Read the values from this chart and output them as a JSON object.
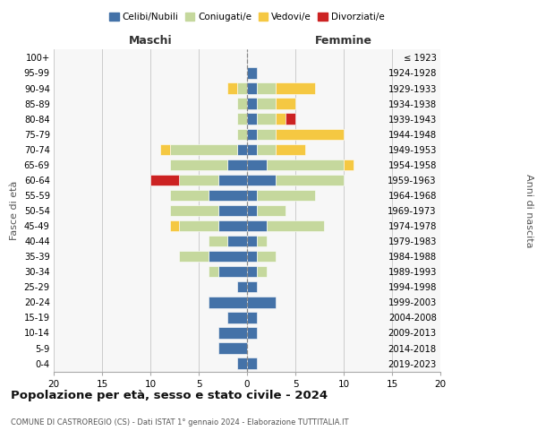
{
  "age_groups": [
    "0-4",
    "5-9",
    "10-14",
    "15-19",
    "20-24",
    "25-29",
    "30-34",
    "35-39",
    "40-44",
    "45-49",
    "50-54",
    "55-59",
    "60-64",
    "65-69",
    "70-74",
    "75-79",
    "80-84",
    "85-89",
    "90-94",
    "95-99",
    "100+"
  ],
  "birth_years": [
    "2019-2023",
    "2014-2018",
    "2009-2013",
    "2004-2008",
    "1999-2003",
    "1994-1998",
    "1989-1993",
    "1984-1988",
    "1979-1983",
    "1974-1978",
    "1969-1973",
    "1964-1968",
    "1959-1963",
    "1954-1958",
    "1949-1953",
    "1944-1948",
    "1939-1943",
    "1934-1938",
    "1929-1933",
    "1924-1928",
    "≤ 1923"
  ],
  "maschi": {
    "celibi": [
      1,
      3,
      3,
      2,
      4,
      1,
      3,
      4,
      2,
      3,
      3,
      4,
      3,
      2,
      1,
      0,
      0,
      0,
      0,
      0,
      0
    ],
    "coniugati": [
      0,
      0,
      0,
      0,
      0,
      0,
      1,
      3,
      2,
      4,
      5,
      4,
      4,
      6,
      7,
      1,
      1,
      1,
      1,
      0,
      0
    ],
    "vedovi": [
      0,
      0,
      0,
      0,
      0,
      0,
      0,
      0,
      0,
      1,
      0,
      0,
      0,
      0,
      1,
      0,
      0,
      0,
      1,
      0,
      0
    ],
    "divorziati": [
      0,
      0,
      0,
      0,
      0,
      0,
      0,
      0,
      0,
      0,
      0,
      0,
      3,
      0,
      0,
      0,
      0,
      0,
      0,
      0,
      0
    ]
  },
  "femmine": {
    "nubili": [
      1,
      0,
      1,
      1,
      3,
      1,
      1,
      1,
      1,
      2,
      1,
      1,
      3,
      2,
      1,
      1,
      1,
      1,
      1,
      1,
      0
    ],
    "coniugate": [
      0,
      0,
      0,
      0,
      0,
      0,
      1,
      2,
      1,
      6,
      3,
      6,
      7,
      8,
      2,
      2,
      2,
      2,
      2,
      0,
      0
    ],
    "vedove": [
      0,
      0,
      0,
      0,
      0,
      0,
      0,
      0,
      0,
      0,
      0,
      0,
      0,
      1,
      3,
      7,
      1,
      2,
      4,
      0,
      0
    ],
    "divorziate": [
      0,
      0,
      0,
      0,
      0,
      0,
      0,
      0,
      0,
      0,
      0,
      0,
      0,
      0,
      0,
      0,
      1,
      0,
      0,
      0,
      0
    ]
  },
  "colors": {
    "celibi": "#4472a8",
    "coniugati": "#c5d89d",
    "vedovi": "#f5c842",
    "divorziati": "#cc2222"
  },
  "title": "Popolazione per età, sesso e stato civile - 2024",
  "subtitle": "COMUNE DI CASTROREGIO (CS) - Dati ISTAT 1° gennaio 2024 - Elaborazione TUTTITALIA.IT",
  "ylabel_left": "Fasce di età",
  "ylabel_right": "Anni di nascita",
  "xlabel_maschi": "Maschi",
  "xlabel_femmine": "Femmine",
  "xlim": 20,
  "legend_labels": [
    "Celibi/Nubili",
    "Coniugati/e",
    "Vedovi/e",
    "Divorziati/e"
  ],
  "background_color": "#ffffff",
  "grid_color": "#cccccc"
}
